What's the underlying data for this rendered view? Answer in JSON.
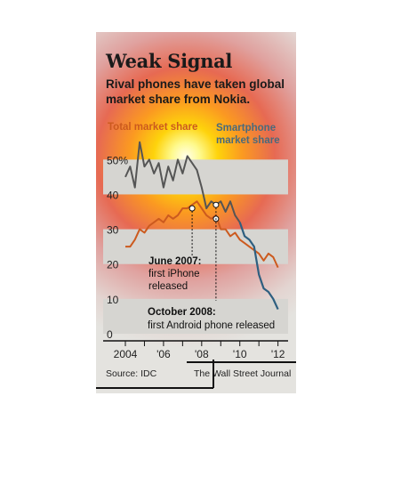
{
  "title": "Weak Signal",
  "subtitle": "Rival phones have taken global market share from Nokia.",
  "legend": {
    "total": "Total market share",
    "smartphone": "Smartphone market share"
  },
  "source": "Source: IDC",
  "credit": "The Wall Street Journal",
  "colors": {
    "total": "#cc5a1e",
    "smartphone_early": "#555555",
    "smartphone_late": "#2e5f80",
    "background": "#e4e3df",
    "band": "#d6d5d1"
  },
  "chart_data": {
    "type": "line",
    "ylim": [
      0,
      58
    ],
    "xlim": [
      2004.0,
      2012.25
    ],
    "y_ticks": [
      "0",
      "10",
      "20",
      "30",
      "40",
      "50%"
    ],
    "y_tick_values": [
      0,
      10,
      20,
      30,
      40,
      50
    ],
    "x_ticks": [
      "2004",
      "'06",
      "'08",
      "'10",
      "'12"
    ],
    "x_tick_values": [
      2004,
      2006,
      2008,
      2010,
      2012
    ],
    "series": [
      {
        "name": "Total market share",
        "x": [
          2004.0,
          2004.25,
          2004.5,
          2004.75,
          2005.0,
          2005.25,
          2005.5,
          2005.75,
          2006.0,
          2006.25,
          2006.5,
          2006.75,
          2007.0,
          2007.25,
          2007.5,
          2007.75,
          2008.0,
          2008.25,
          2008.5,
          2008.75,
          2009.0,
          2009.25,
          2009.5,
          2009.75,
          2010.0,
          2010.25,
          2010.5,
          2010.75,
          2011.0,
          2011.25,
          2011.5,
          2011.75,
          2012.0
        ],
        "values": [
          25,
          25,
          27,
          30,
          29,
          31,
          32,
          33,
          32,
          34,
          33,
          34,
          36,
          36,
          37,
          38,
          36,
          34,
          33,
          34,
          30,
          30,
          28,
          29,
          27,
          26,
          25,
          24,
          23,
          21,
          23,
          22,
          19
        ]
      },
      {
        "name": "Smartphone market share",
        "x": [
          2004.0,
          2004.25,
          2004.5,
          2004.75,
          2005.0,
          2005.25,
          2005.5,
          2005.75,
          2006.0,
          2006.25,
          2006.5,
          2006.75,
          2007.0,
          2007.25,
          2007.5,
          2007.75,
          2008.0,
          2008.25,
          2008.5,
          2008.75,
          2009.0,
          2009.25,
          2009.5,
          2009.75,
          2010.0,
          2010.25,
          2010.5,
          2010.75,
          2011.0,
          2011.25,
          2011.5,
          2011.75,
          2012.0
        ],
        "values": [
          45,
          48,
          42,
          55,
          48,
          50,
          46,
          49,
          42,
          48,
          44,
          50,
          46,
          51,
          49,
          47,
          42,
          36,
          38,
          37,
          38,
          35,
          38,
          34,
          32,
          28,
          27,
          25,
          17,
          13,
          12,
          10,
          7
        ]
      }
    ],
    "annotations": [
      {
        "label_date": "June 2007:",
        "label_text": "first iPhone released",
        "x": 2007.5,
        "y": 36
      },
      {
        "label_date": "October 2008:",
        "label_text": "first Android phone released",
        "x": 2008.75,
        "y": 37
      }
    ]
  }
}
